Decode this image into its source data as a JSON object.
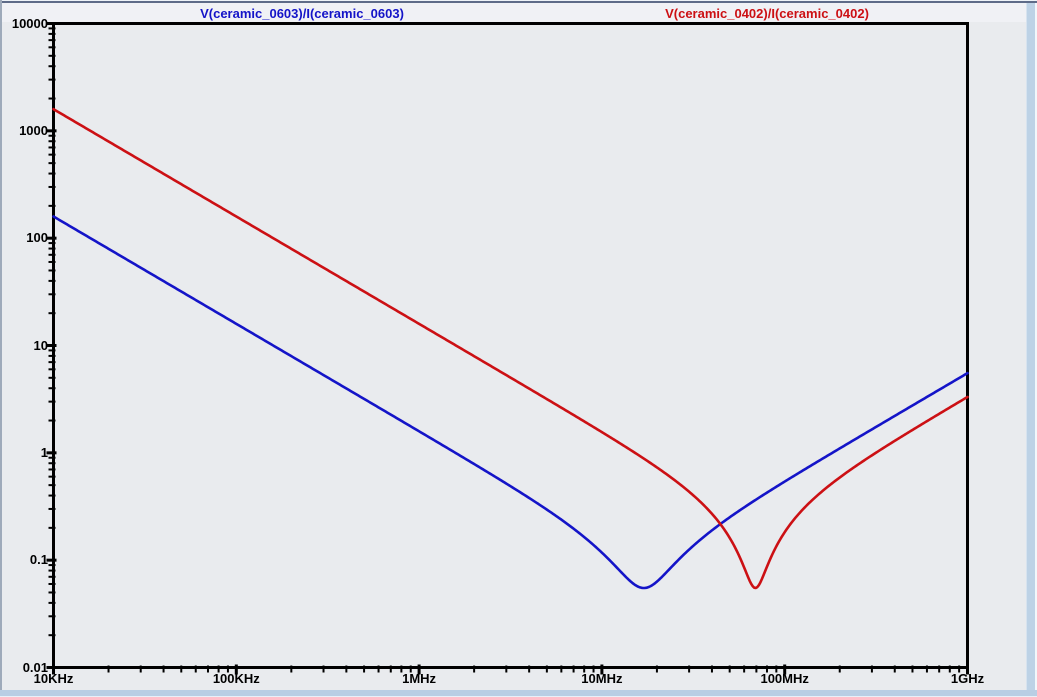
{
  "legend": {
    "entries": [
      {
        "label": "V(ceramic_0603)/I(ceramic_0603)",
        "color": "#1414c8"
      },
      {
        "label": "V(ceramic_0402)/I(ceramic_0402)",
        "color": "#cc1014"
      }
    ]
  },
  "chart_data": {
    "type": "line",
    "title": "",
    "xlabel": "",
    "ylabel": "",
    "x_scale": "log",
    "y_scale": "log",
    "xlim": [
      10000,
      1000000000
    ],
    "ylim": [
      0.01,
      10000
    ],
    "grid": false,
    "legend_position": "top",
    "x_ticks": [
      {
        "value": 10000,
        "label": "10KHz"
      },
      {
        "value": 100000,
        "label": "100KHz"
      },
      {
        "value": 1000000,
        "label": "1MHz"
      },
      {
        "value": 10000000,
        "label": "10MHz"
      },
      {
        "value": 100000000,
        "label": "100MHz"
      },
      {
        "value": 1000000000,
        "label": "1GHz"
      }
    ],
    "y_ticks": [
      {
        "value": 10000,
        "label": "10000"
      },
      {
        "value": 1000,
        "label": "1000"
      },
      {
        "value": 100,
        "label": "100"
      },
      {
        "value": 10,
        "label": "10"
      },
      {
        "value": 1,
        "label": "1"
      },
      {
        "value": 0.1,
        "label": "0.1"
      },
      {
        "value": 0.01,
        "label": "0.01"
      }
    ],
    "series": [
      {
        "name": "V(ceramic_0603)/I(ceramic_0603)",
        "color": "#1414c8",
        "shape": "series-RLC impedance V-curve",
        "model": {
          "C_farads": 1e-07,
          "L_henries": 8.8e-10,
          "R_ohms": 0.055
        },
        "resonance_hz": 17000000,
        "points": [
          [
            10000,
            159
          ],
          [
            31600,
            50.3
          ],
          [
            100000,
            15.9
          ],
          [
            316000,
            5.03
          ],
          [
            1000000,
            1.59
          ],
          [
            3160000,
            0.489
          ],
          [
            10000000,
            0.118
          ],
          [
            17000000,
            0.055
          ],
          [
            31600000,
            0.136
          ],
          [
            100000000,
            0.54
          ],
          [
            316000000,
            1.74
          ],
          [
            1000000000,
            5.53
          ]
        ]
      },
      {
        "name": "V(ceramic_0402)/I(ceramic_0402)",
        "color": "#cc1014",
        "shape": "series-RLC impedance V-curve",
        "model": {
          "C_farads": 1e-08,
          "L_henries": 5.3e-10,
          "R_ohms": 0.055
        },
        "resonance_hz": 69300000,
        "points": [
          [
            10000,
            1591
          ],
          [
            31600,
            503
          ],
          [
            100000,
            159
          ],
          [
            316000,
            50.3
          ],
          [
            1000000,
            15.9
          ],
          [
            3160000,
            5.03
          ],
          [
            10000000,
            1.56
          ],
          [
            31600000,
            0.402
          ],
          [
            69300000,
            0.055
          ],
          [
            100000000,
            0.182
          ],
          [
            316000000,
            1.0
          ],
          [
            1000000000,
            3.31
          ]
        ]
      }
    ],
    "colors": {
      "plot_bg": "#e9ebee",
      "legend_bg": "#f0f1f5",
      "frame": "#000000",
      "chrome_border": "#bdd2e6"
    }
  }
}
